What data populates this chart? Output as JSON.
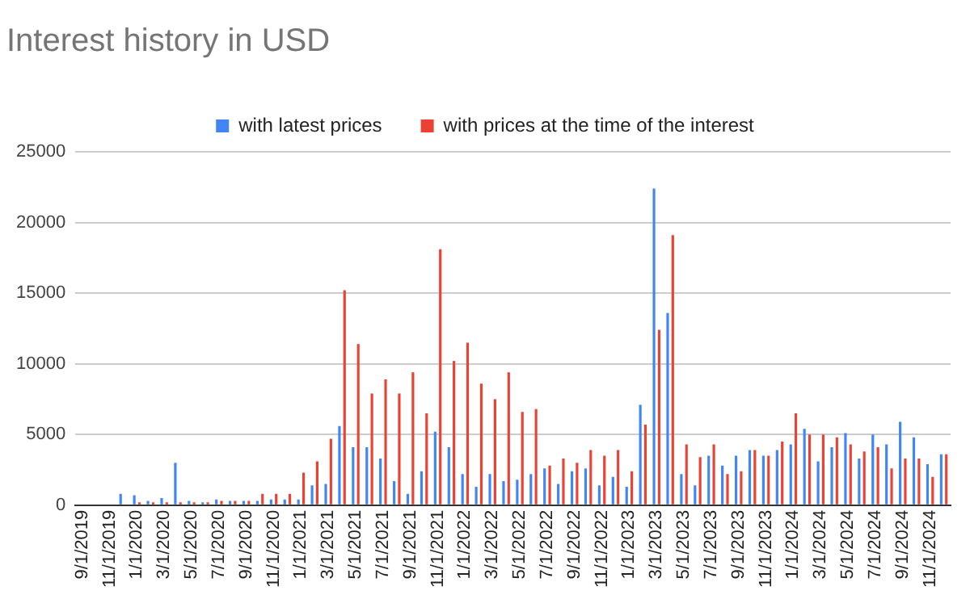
{
  "chart_data": {
    "type": "bar",
    "title": "Interest history in USD",
    "categories": [
      "9/1/2019",
      null,
      "11/1/2019",
      null,
      "1/1/2020",
      null,
      "3/1/2020",
      null,
      "5/1/2020",
      null,
      "7/1/2020",
      null,
      "9/1/2020",
      null,
      "11/1/2020",
      null,
      "1/1/2021",
      null,
      "3/1/2021",
      null,
      "5/1/2021",
      null,
      "7/1/2021",
      null,
      "9/1/2021",
      null,
      "11/1/2021",
      null,
      "1/1/2022",
      null,
      "3/1/2022",
      null,
      "5/1/2022",
      null,
      "7/1/2022",
      null,
      "9/1/2022",
      null,
      "11/1/2022",
      null,
      "1/1/2023",
      null,
      "3/1/2023",
      null,
      "5/1/2023",
      null,
      "7/1/2023",
      null,
      "9/1/2023",
      null,
      "11/1/2023",
      null,
      "1/1/2024",
      null,
      "3/1/2024",
      null,
      "5/1/2024",
      null,
      "7/1/2024",
      null,
      "9/1/2024",
      null,
      "11/1/2024",
      null
    ],
    "series": [
      {
        "name": "with latest prices",
        "color": "#4285f4",
        "values": [
          0,
          0,
          0,
          800,
          700,
          300,
          500,
          3000,
          300,
          200,
          400,
          300,
          300,
          300,
          400,
          400,
          400,
          1400,
          1500,
          5600,
          4100,
          4100,
          3300,
          1700,
          800,
          2400,
          5200,
          4100,
          2200,
          1300,
          2200,
          1700,
          1800,
          2200,
          2600,
          1500,
          2400,
          2600,
          1400,
          2000,
          1300,
          7100,
          22400,
          13600,
          2200,
          1400,
          3500,
          2800,
          3500,
          3900,
          3500,
          3900,
          4300,
          5400,
          3100,
          4100,
          5100,
          3300,
          5000,
          4300,
          5900,
          4800,
          2900,
          3600
        ]
      },
      {
        "name": "with prices at the time of the interest",
        "color": "#ea4335",
        "values": [
          0,
          0,
          0,
          0,
          200,
          200,
          200,
          200,
          200,
          200,
          300,
          300,
          300,
          800,
          800,
          800,
          2300,
          3100,
          4700,
          15200,
          11400,
          7900,
          8900,
          7900,
          9400,
          6500,
          18100,
          10200,
          11500,
          8600,
          7500,
          9400,
          6600,
          6800,
          2800,
          3300,
          3000,
          3900,
          3500,
          3900,
          2400,
          5700,
          12400,
          19100,
          4300,
          3400,
          4300,
          2200,
          2400,
          3900,
          3500,
          4500,
          6500,
          5000,
          5000,
          4800,
          4300,
          3800,
          4100,
          2600,
          3300,
          3300,
          2000,
          3600
        ]
      }
    ],
    "ylim": [
      0,
      25000
    ],
    "yticks": [
      0,
      5000,
      10000,
      15000,
      20000,
      25000
    ],
    "grid": "y",
    "legend": "top"
  }
}
